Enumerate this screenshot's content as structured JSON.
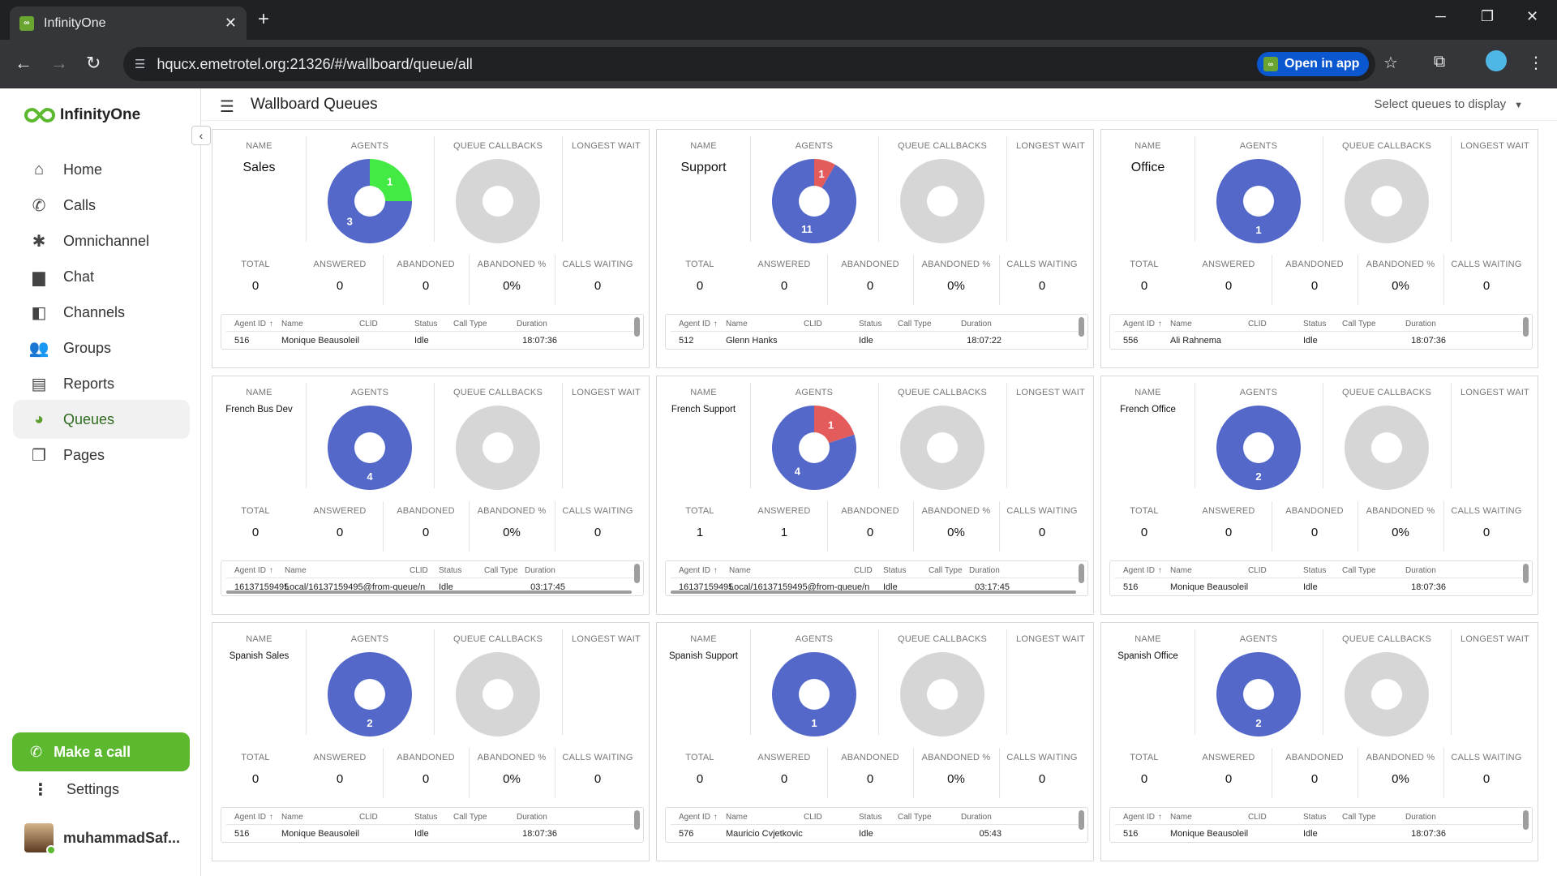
{
  "browser": {
    "tab_title": "InfinityOne",
    "url": "hqucx.emetrotel.org:21326/#/wallboard/queue/all",
    "open_in_app": "Open in app"
  },
  "sidebar": {
    "brand": "InfinityOne",
    "items": [
      {
        "label": "Home",
        "icon": "home-icon"
      },
      {
        "label": "Calls",
        "icon": "phone-icon"
      },
      {
        "label": "Omnichannel",
        "icon": "hub-icon"
      },
      {
        "label": "Chat",
        "icon": "chat-icon"
      },
      {
        "label": "Channels",
        "icon": "channels-icon"
      },
      {
        "label": "Groups",
        "icon": "groups-icon"
      },
      {
        "label": "Reports",
        "icon": "reports-icon"
      },
      {
        "label": "Queues",
        "icon": "pie-icon",
        "active": true
      },
      {
        "label": "Pages",
        "icon": "pages-icon"
      }
    ],
    "make_call": "Make a call",
    "settings": "Settings",
    "user_name": "muhammadSaf..."
  },
  "header": {
    "title": "Wallboard Queues",
    "queue_select": "Select queues to display"
  },
  "labels": {
    "name": "NAME",
    "agents": "AGENTS",
    "callbacks": "QUEUE CALLBACKS",
    "longest_wait": "LONGEST WAIT",
    "total": "TOTAL",
    "answered": "ANSWERED",
    "abandoned": "ABANDONED",
    "abandoned_pct": "ABANDONED %",
    "calls_waiting": "CALLS WAITING",
    "col_agent_id": "Agent ID",
    "col_name": "Name",
    "col_clid": "CLID",
    "col_status": "Status",
    "col_call_type": "Call Type",
    "col_duration": "Duration"
  },
  "colors": {
    "available": "#44ea44",
    "busy": "#e45b5b",
    "logged_in": "#5468c9",
    "callbacks": "#d6d6d6",
    "brand_green": "#5cb82f"
  },
  "queues": [
    {
      "name": "Sales",
      "size": "big",
      "agents": {
        "green": 1,
        "red": 0,
        "blue": 3
      },
      "total": "0",
      "answered": "0",
      "abandoned": "0",
      "abandoned_pct": "0%",
      "calls_waiting": "0",
      "row": {
        "agent_id": "516",
        "name": "Monique Beausoleil",
        "clid": "",
        "status": "Idle",
        "call_type": "",
        "duration": "18:07:36"
      }
    },
    {
      "name": "Support",
      "size": "big",
      "agents": {
        "green": 0,
        "red": 1,
        "blue": 11
      },
      "total": "0",
      "answered": "0",
      "abandoned": "0",
      "abandoned_pct": "0%",
      "calls_waiting": "0",
      "row": {
        "agent_id": "512",
        "name": "Glenn Hanks",
        "clid": "",
        "status": "Idle",
        "call_type": "",
        "duration": "18:07:22"
      }
    },
    {
      "name": "Office",
      "size": "big",
      "agents": {
        "green": 0,
        "red": 0,
        "blue": 1
      },
      "total": "0",
      "answered": "0",
      "abandoned": "0",
      "abandoned_pct": "0%",
      "calls_waiting": "0",
      "row": {
        "agent_id": "556",
        "name": "Ali Rahnema",
        "clid": "",
        "status": "Idle",
        "call_type": "",
        "duration": "18:07:36"
      }
    },
    {
      "name": "French Bus Dev",
      "size": "small",
      "agents": {
        "green": 0,
        "red": 0,
        "blue": 4
      },
      "total": "0",
      "answered": "0",
      "abandoned": "0",
      "abandoned_pct": "0%",
      "calls_waiting": "0",
      "row": {
        "agent_id": "16137159495",
        "name": "Local/16137159495@from-queue/n",
        "clid": "",
        "status": "Idle",
        "call_type": "",
        "duration": "03:17:45"
      },
      "hscroll": true
    },
    {
      "name": "French Support",
      "size": "small",
      "agents": {
        "green": 0,
        "red": 1,
        "blue": 4
      },
      "total": "1",
      "answered": "1",
      "abandoned": "0",
      "abandoned_pct": "0%",
      "calls_waiting": "0",
      "row": {
        "agent_id": "16137159495",
        "name": "Local/16137159495@from-queue/n",
        "clid": "",
        "status": "Idle",
        "call_type": "",
        "duration": "03:17:45"
      },
      "hscroll": true
    },
    {
      "name": "French Office",
      "size": "small",
      "agents": {
        "green": 0,
        "red": 0,
        "blue": 2
      },
      "total": "0",
      "answered": "0",
      "abandoned": "0",
      "abandoned_pct": "0%",
      "calls_waiting": "0",
      "row": {
        "agent_id": "516",
        "name": "Monique Beausoleil",
        "clid": "",
        "status": "Idle",
        "call_type": "",
        "duration": "18:07:36"
      }
    },
    {
      "name": "Spanish Sales",
      "size": "small",
      "agents": {
        "green": 0,
        "red": 0,
        "blue": 2
      },
      "total": "0",
      "answered": "0",
      "abandoned": "0",
      "abandoned_pct": "0%",
      "calls_waiting": "0",
      "row": {
        "agent_id": "516",
        "name": "Monique Beausoleil",
        "clid": "",
        "status": "Idle",
        "call_type": "",
        "duration": "18:07:36"
      }
    },
    {
      "name": "Spanish Support",
      "size": "small",
      "agents": {
        "green": 0,
        "red": 0,
        "blue": 1
      },
      "total": "0",
      "answered": "0",
      "abandoned": "0",
      "abandoned_pct": "0%",
      "calls_waiting": "0",
      "row": {
        "agent_id": "576",
        "name": "Mauricio Cvjetkovic",
        "clid": "",
        "status": "Idle",
        "call_type": "",
        "duration": "05:43"
      }
    },
    {
      "name": "Spanish Office",
      "size": "small",
      "agents": {
        "green": 0,
        "red": 0,
        "blue": 2
      },
      "total": "0",
      "answered": "0",
      "abandoned": "0",
      "abandoned_pct": "0%",
      "calls_waiting": "0",
      "row": {
        "agent_id": "516",
        "name": "Monique Beausoleil",
        "clid": "",
        "status": "Idle",
        "call_type": "",
        "duration": "18:07:36"
      }
    }
  ]
}
